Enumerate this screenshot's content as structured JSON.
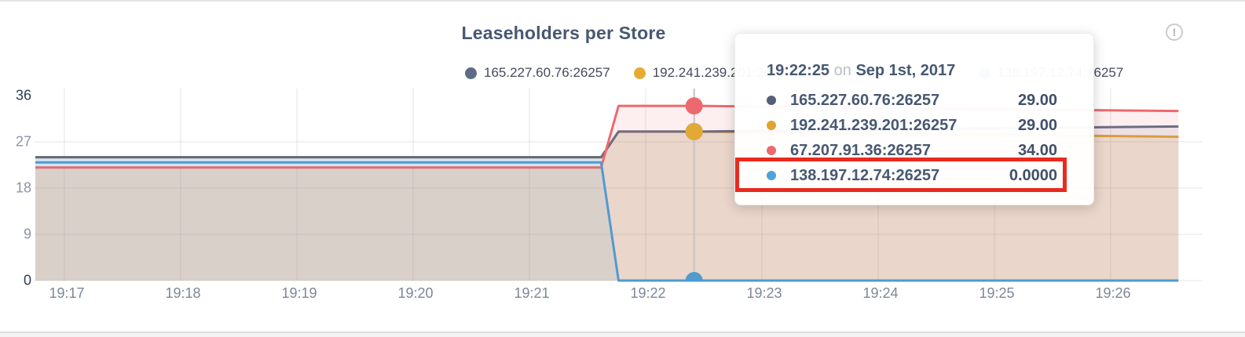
{
  "header": {
    "title": "Leaseholders per Store",
    "info_icon_glyph": "!"
  },
  "legend": {
    "items": [
      {
        "label": "165.227.60.76:26257",
        "color": "#5f6b87"
      },
      {
        "label": "192.241.239.201:26257",
        "color": "#e5ac32"
      },
      {
        "label": "67.207.91.36:26257",
        "color": "#ed696e"
      },
      {
        "label": "138.197.12.74:26257",
        "color": "#4da3d9"
      }
    ]
  },
  "chart_data": {
    "type": "area",
    "title": "Leaseholders per Store",
    "xlabel": "",
    "ylabel": "",
    "ylim": [
      0,
      36
    ],
    "y_ticks": [
      0,
      9,
      18,
      27,
      36
    ],
    "y_tick_dark": [
      0,
      36
    ],
    "x_ticks": [
      "19:17",
      "19:18",
      "19:19",
      "19:20",
      "19:21",
      "19:22",
      "19:23",
      "19:24",
      "19:25",
      "19:26"
    ],
    "x_range": {
      "start_time": "19:16:45",
      "end_time": "19:26:35"
    },
    "grid": true,
    "legend_position": "top",
    "series": [
      {
        "name": "165.227.60.76:26257",
        "color": "#5f6b87",
        "fill_opacity": 0.1,
        "points": [
          [
            -15,
            24
          ],
          [
            277,
            24
          ],
          [
            286,
            29
          ],
          [
            325,
            29
          ],
          [
            575,
            30
          ]
        ]
      },
      {
        "name": "192.241.239.201:26257",
        "color": "#e2aa35",
        "fill_opacity": 0.16,
        "points": [
          [
            -15,
            24
          ],
          [
            277,
            24
          ],
          [
            286,
            29
          ],
          [
            325,
            29
          ],
          [
            575,
            28
          ]
        ]
      },
      {
        "name": "67.207.91.36:26257",
        "color": "#ed696e",
        "fill_opacity": 0.11,
        "points": [
          [
            -15,
            22
          ],
          [
            277,
            22
          ],
          [
            286,
            34
          ],
          [
            325,
            34
          ],
          [
            575,
            33
          ]
        ]
      },
      {
        "name": "138.197.12.74:26257",
        "color": "#4f9bd0",
        "fill_opacity": 0.1,
        "halo": "#d2e5f4",
        "points": [
          [
            -15,
            23
          ],
          [
            277,
            23
          ],
          [
            286,
            0
          ],
          [
            575,
            0
          ]
        ]
      }
    ],
    "render_order": [
      1,
      0,
      2,
      3
    ],
    "hover": {
      "time": "19:22:25",
      "x_seconds": 325,
      "values": [
        29,
        29,
        34,
        0
      ]
    }
  },
  "tooltip": {
    "time": "19:22:25",
    "on_word": "on",
    "date": "Sep 1st, 2017",
    "rows": [
      {
        "name": "165.227.60.76:26257",
        "value": "29.00",
        "color": "#545f7a"
      },
      {
        "name": "192.241.239.201:26257",
        "value": "29.00",
        "color": "#e0a32e"
      },
      {
        "name": "67.207.91.36:26257",
        "value": "34.00",
        "color": "#ed696e"
      },
      {
        "name": "138.197.12.74:26257",
        "value": "0.0000",
        "color": "#4da3d9"
      }
    ],
    "highlighted_row": "138.197.12.74:26257"
  }
}
